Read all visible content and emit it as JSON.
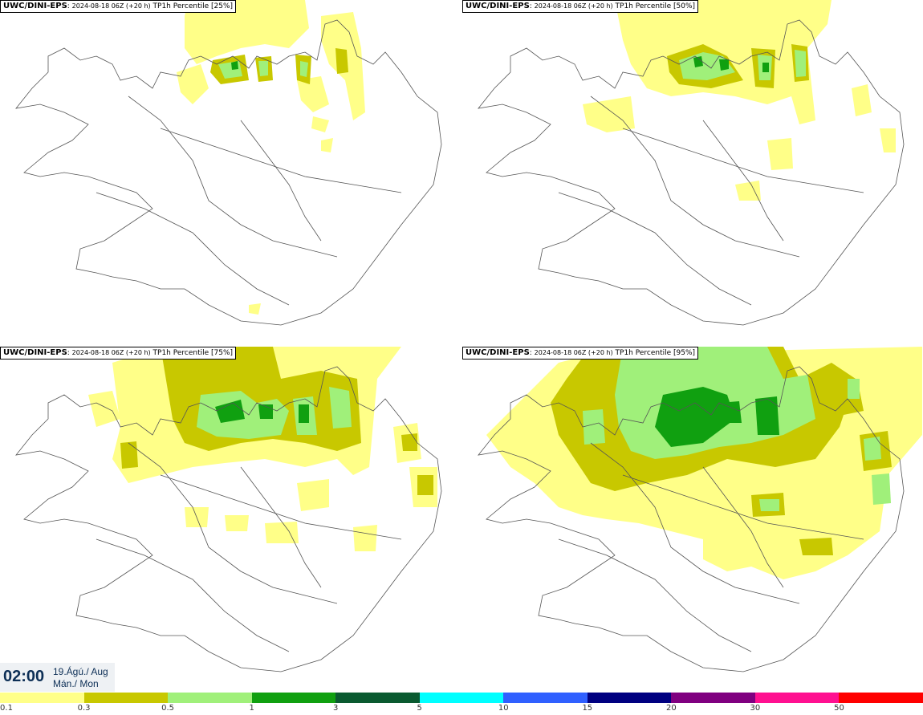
{
  "panels": [
    {
      "model": "UWC/DINI-EPS",
      "run": "2024-08-18 06Z (+20 h)",
      "title": "TP1h Percentile [25%]"
    },
    {
      "model": "UWC/DINI-EPS",
      "run": "2024-08-18 06Z (+20 h)",
      "title": "TP1h Percentile [50%]"
    },
    {
      "model": "UWC/DINI-EPS",
      "run": "2024-08-18 06Z (+20 h)",
      "title": "TP1h Percentile [75%]"
    },
    {
      "model": "UWC/DINI-EPS",
      "run": "2024-08-18 06Z (+20 h)",
      "title": "TP1h Percentile [95%]"
    }
  ],
  "valid": {
    "time": "02:00",
    "date": "19.Ágú./ Aug",
    "day": "Mán./ Mon"
  },
  "legend": {
    "colors": [
      "#ffff88",
      "#c8c800",
      "#a0f07a",
      "#10a010",
      "#0a5a30",
      "#00ffff",
      "#3060ff",
      "#000080",
      "#800080",
      "#ff1090",
      "#ff0000"
    ],
    "ticks": [
      "0.1",
      "0.3",
      "0.5",
      "1",
      "3",
      "5",
      "10",
      "15",
      "20",
      "30",
      "50"
    ]
  }
}
